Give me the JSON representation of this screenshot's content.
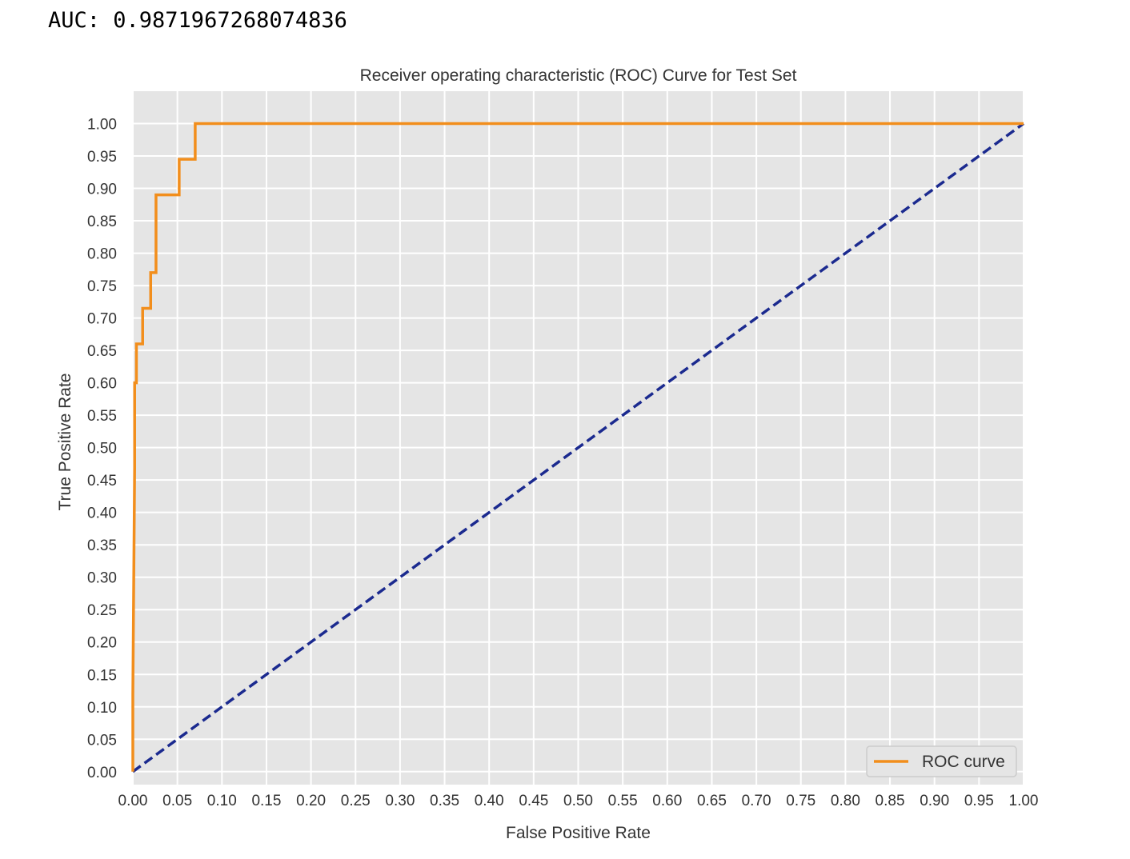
{
  "output_text": "AUC: 0.9871967268074836",
  "colors": {
    "plot_background": "#e5e5e5",
    "grid": "#ffffff",
    "roc_line": "#f28e1c",
    "diagonal": "#1b2a8f"
  },
  "chart_data": {
    "type": "line",
    "title": "Receiver operating characteristic (ROC) Curve for Test Set",
    "xlabel": "False Positive Rate",
    "ylabel": "True Positive Rate",
    "xlim": [
      0,
      1
    ],
    "ylim": [
      -0.02,
      1.05
    ],
    "x_ticks": [
      "0.00",
      "0.05",
      "0.10",
      "0.15",
      "0.20",
      "0.25",
      "0.30",
      "0.35",
      "0.40",
      "0.45",
      "0.50",
      "0.55",
      "0.60",
      "0.65",
      "0.70",
      "0.75",
      "0.80",
      "0.85",
      "0.90",
      "0.95",
      "1.00"
    ],
    "y_ticks": [
      "0.00",
      "0.05",
      "0.10",
      "0.15",
      "0.20",
      "0.25",
      "0.30",
      "0.35",
      "0.40",
      "0.45",
      "0.50",
      "0.55",
      "0.60",
      "0.65",
      "0.70",
      "0.75",
      "0.80",
      "0.85",
      "0.90",
      "0.95",
      "1.00"
    ],
    "grid": true,
    "legend_position": "bottom-right",
    "series": [
      {
        "name": "ROC curve",
        "style": "solid",
        "color": "#f28e1c",
        "x": [
          0.0,
          0.0,
          0.002,
          0.002,
          0.004,
          0.004,
          0.011,
          0.011,
          0.02,
          0.02,
          0.026,
          0.026,
          0.052,
          0.052,
          0.07,
          0.07,
          1.0
        ],
        "y": [
          0.0,
          0.12,
          0.47,
          0.6,
          0.6,
          0.66,
          0.66,
          0.715,
          0.715,
          0.77,
          0.77,
          0.89,
          0.89,
          0.945,
          0.945,
          1.0,
          1.0
        ]
      },
      {
        "style": "dashed",
        "color": "#1b2a8f",
        "x": [
          0.0,
          1.0
        ],
        "y": [
          0.0,
          1.0
        ]
      }
    ]
  }
}
